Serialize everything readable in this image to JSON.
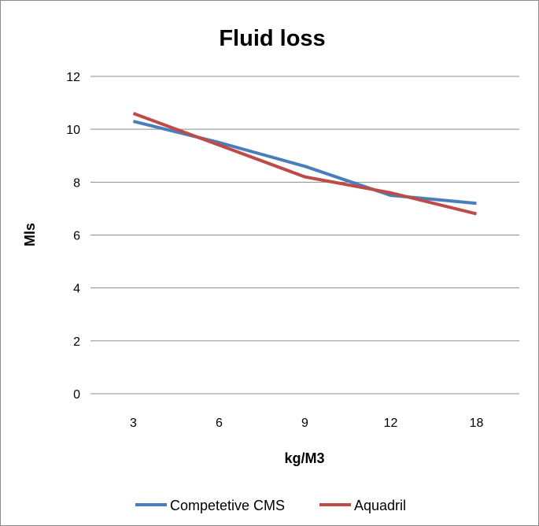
{
  "chart_data": {
    "type": "line",
    "title": "Fluid loss",
    "xlabel": "kg/M3",
    "ylabel": "Mls",
    "categories": [
      "3",
      "6",
      "9",
      "12",
      "18"
    ],
    "ylim": [
      0,
      12
    ],
    "yticks": [
      "0",
      "2",
      "4",
      "6",
      "8",
      "10",
      "12"
    ],
    "grid": true,
    "legend": "bottom",
    "series": [
      {
        "name": "Competetive CMS",
        "color": "#4a7ebb",
        "values": [
          10.3,
          9.5,
          8.6,
          7.5,
          7.2
        ]
      },
      {
        "name": "Aquadril",
        "color": "#be4b48",
        "values": [
          10.6,
          9.4,
          8.2,
          7.6,
          6.8
        ]
      }
    ]
  }
}
